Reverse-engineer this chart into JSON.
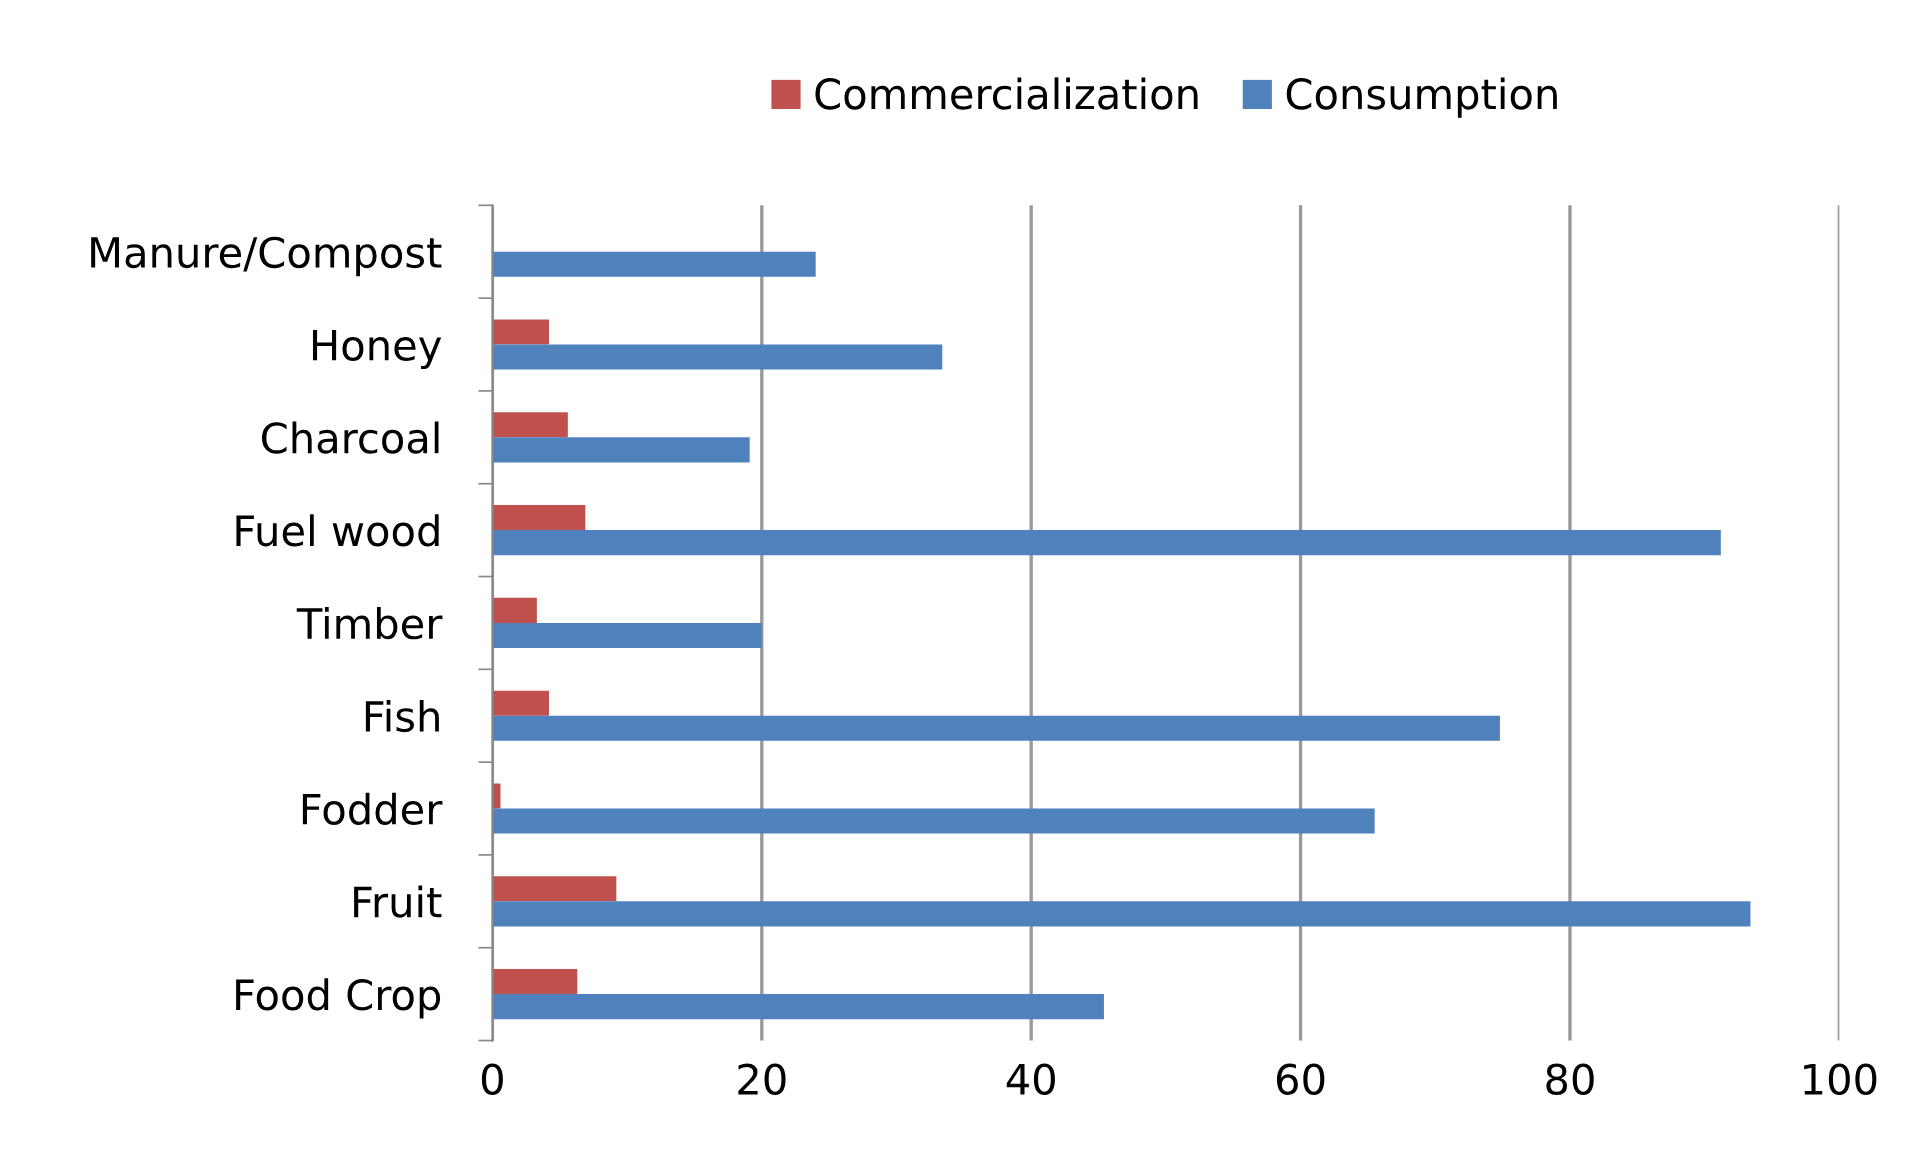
{
  "chart_data": {
    "type": "bar",
    "orientation": "horizontal",
    "categories": [
      "Manure/Compost",
      "Honey",
      "Charcoal",
      "Fuel wood",
      "Timber",
      "Fish",
      "Fodder",
      "Fruit",
      "Food Crop"
    ],
    "series": [
      {
        "name": "Commercialization",
        "color": "#c0504d",
        "values": [
          0,
          4.2,
          5.6,
          6.9,
          3.3,
          4.2,
          0.6,
          9.2,
          6.3
        ]
      },
      {
        "name": "Consumption",
        "color": "#4f81bd",
        "values": [
          24.0,
          33.4,
          19.1,
          91.2,
          20.0,
          74.8,
          65.5,
          93.4,
          45.4
        ]
      }
    ],
    "xlim": [
      0,
      100
    ],
    "xticks": [
      0,
      20,
      40,
      60,
      80,
      100
    ],
    "grid": "x",
    "legend": "top"
  }
}
